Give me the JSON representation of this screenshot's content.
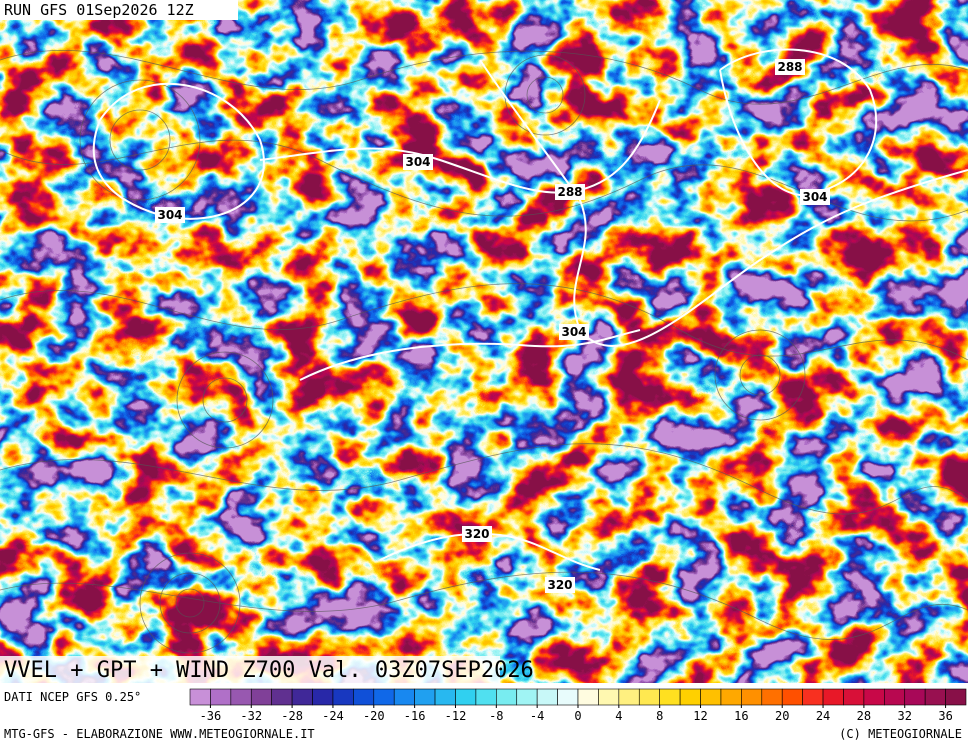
{
  "header": {
    "run": "RUN GFS 01Sep2026 12Z"
  },
  "map": {
    "title": "VVEL + GPT + WIND Z700 Val. 03Z07SEP2026",
    "contour_labels": [
      288,
      304,
      288,
      304,
      304,
      304,
      320,
      320
    ]
  },
  "legend": {
    "source": "DATI NCEP GFS 0.25°",
    "colorbar": {
      "lim": [
        -38,
        38
      ],
      "ticks": [
        -36,
        -32,
        -28,
        -24,
        -20,
        -16,
        -12,
        -8,
        -4,
        0,
        4,
        8,
        12,
        16,
        20,
        24,
        28,
        32,
        36
      ],
      "colors": [
        "#c890d8",
        "#b070c8",
        "#9858b0",
        "#804098",
        "#603090",
        "#402898",
        "#2828a8",
        "#1838c0",
        "#1050d8",
        "#1068e8",
        "#1888f0",
        "#20a0f0",
        "#28b8f0",
        "#30d0f0",
        "#50e0f0",
        "#78ecf0",
        "#a0f4f4",
        "#c8f8f8",
        "#e8fcfc",
        "#fffce0",
        "#fff8b0",
        "#fff080",
        "#ffe850",
        "#ffe020",
        "#ffd000",
        "#ffc000",
        "#ffa800",
        "#ff9000",
        "#ff7000",
        "#ff5000",
        "#f83020",
        "#e81828",
        "#d81038",
        "#c80848",
        "#b80850",
        "#a80858",
        "#981050",
        "#881048"
      ]
    }
  },
  "footer": {
    "credit": "MTG-GFS - ELABORAZIONE WWW.METEOGIORNALE.IT",
    "copyright": "(C) METEOGIORNALE"
  }
}
